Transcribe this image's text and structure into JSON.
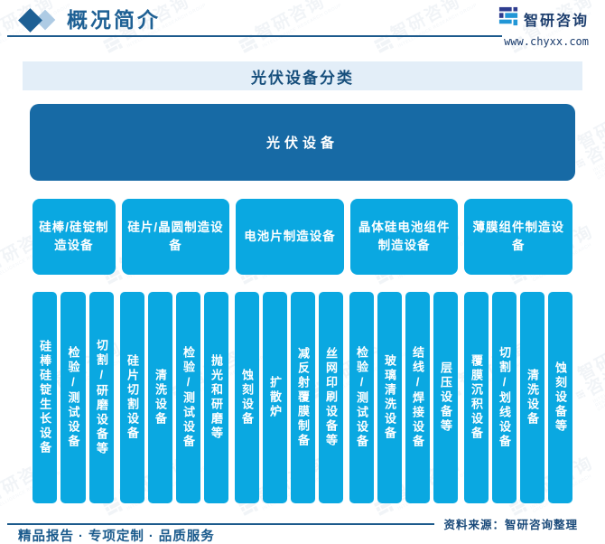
{
  "header": {
    "section_title": "概况简介",
    "brand_name": "智研咨询",
    "website": "www.chyxx.com"
  },
  "chart_title": "光伏设备分类",
  "tree": {
    "root_label": "光伏设备",
    "groups": [
      {
        "label": "硅棒/硅锭制造设备",
        "items": [
          "硅棒硅锭生长设备",
          "检验/测试设备",
          "切割/研磨设备等"
        ]
      },
      {
        "label": "硅片/晶圆制造设备",
        "items": [
          "硅片切割设备",
          "清洗设备",
          "检验/测试设备",
          "抛光和研磨等"
        ]
      },
      {
        "label": "电池片制造设备",
        "items": [
          "蚀刻设备",
          "扩散炉",
          "减反射覆膜制备",
          "丝网印刷设备等"
        ]
      },
      {
        "label": "晶体硅电池组件制造设备",
        "items": [
          "检验/测试设备",
          "玻璃清洗设备",
          "结线/焊接设备",
          "层压设备等"
        ]
      },
      {
        "label": "薄膜组件制造设备",
        "items": [
          "覆膜沉积设备",
          "切割/划线设备",
          "清洗设备",
          "蚀刻设备等"
        ]
      }
    ]
  },
  "footer": {
    "source": "资料来源：智研咨询整理",
    "tagline": "精品报告 · 专项定制 · 品质服务"
  },
  "watermark": {
    "brand": "智研咨询",
    "caption": "INTELLIGENCE RESEARCH GROUP"
  },
  "colors": {
    "navy": "#1C5A8C",
    "cyan": "#0AA8E1",
    "root_blue": "#176AA5",
    "band_bg": "#E3EEF8"
  }
}
